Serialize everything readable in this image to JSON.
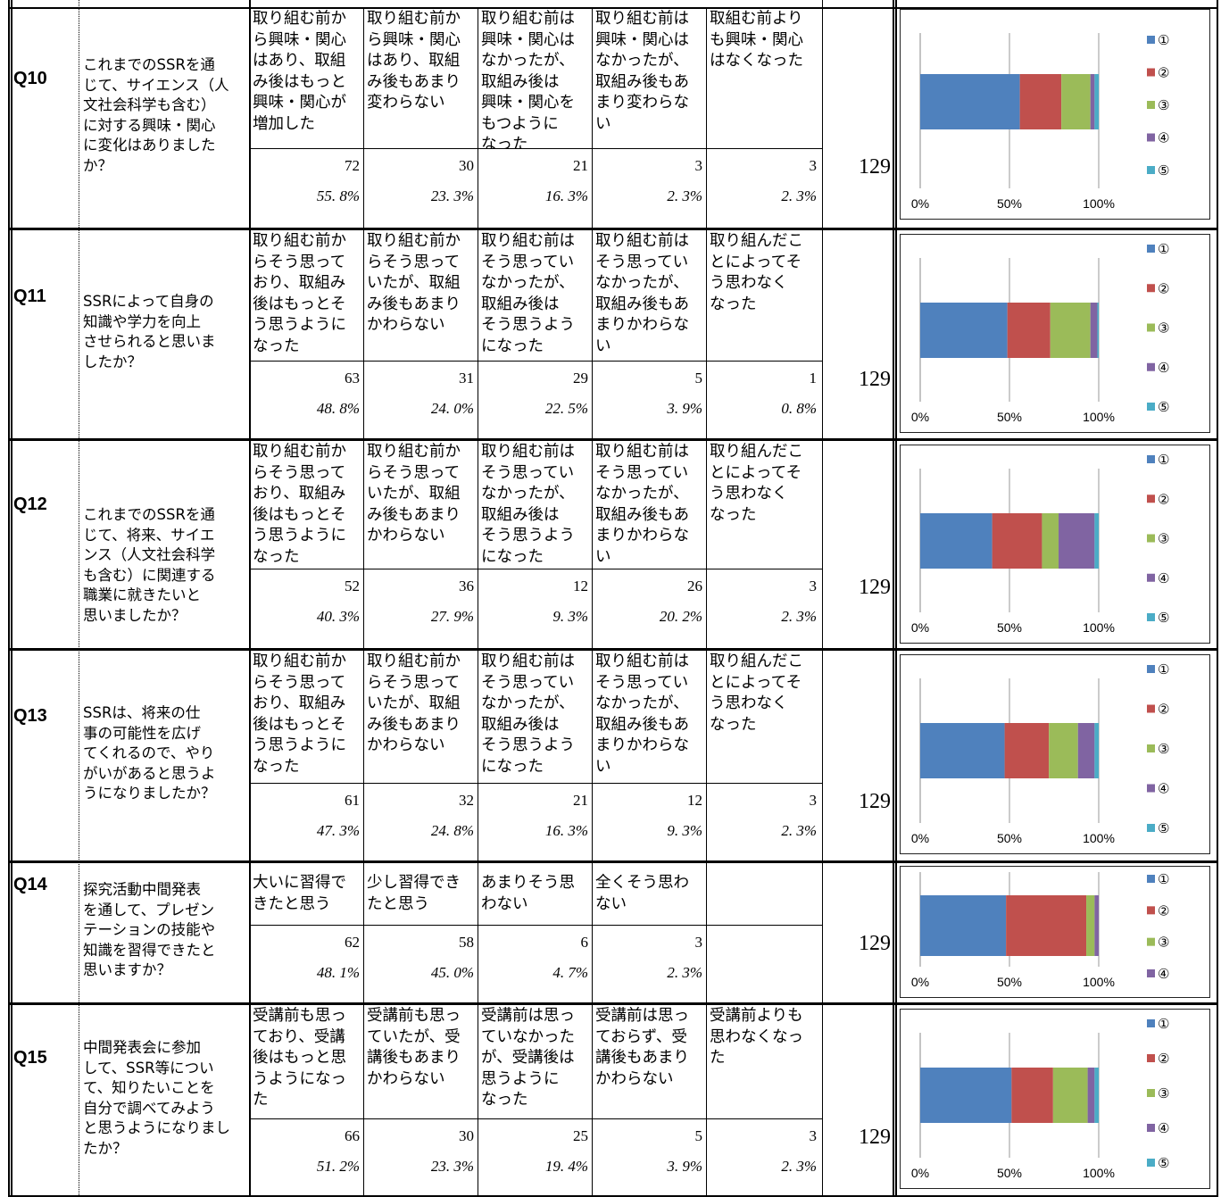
{
  "questions": [
    {
      "id": "Q10",
      "question": "これまでのSSRを通\nじて、サイエンス（人\n文社会科学も含む）\nに対する興味・関心\nに変化はありました\nか？",
      "options": [
        "取り組む前か\nら興味・関心\nはあり、取組\nみ後はもっと\n興味・関心が\n増加した",
        "取り組む前か\nら興味・関心\nはあり、取組\nみ後もあまり\n変わらない",
        "取り組む前は\n興味・関心は\nなかったが、\n取組み後は\n興味・関心を\nもつように\nなった",
        "取り組む前は\n興味・関心は\nなかったが、\n取組み後もあ\nまり変わらな\nい",
        "取組む前より\nも興味・関心\nはなくなった"
      ],
      "counts": [
        72,
        30,
        21,
        3,
        3
      ],
      "percents": [
        "55. 8%",
        "23. 3%",
        "16. 3%",
        "2. 3%",
        "2. 3%"
      ],
      "total": "129"
    },
    {
      "id": "Q11",
      "question": "SSRによって自身の\n知識や学力を向上\nさせられると思いま\nしたか？",
      "options": [
        "取り組む前か\nらそう思って\nおり、取組み\n後はもっとそ\nう思うように\nなった",
        "取り組む前か\nらそう思って\nいたが、取組\nみ後もあまり\nかわらない",
        "取り組む前は\nそう思ってい\nなかったが、\n取組み後は\nそう思うよう\nになった",
        "取り組む前は\nそう思ってい\nなかったが、\n取組み後もあ\nまりかわらな\nい",
        "取り組んだこ\nとによってそ\nう思わなく\nなった"
      ],
      "counts": [
        63,
        31,
        29,
        5,
        1
      ],
      "percents": [
        "48. 8%",
        "24. 0%",
        "22. 5%",
        "3. 9%",
        "0. 8%"
      ],
      "total": "129"
    },
    {
      "id": "Q12",
      "question": "これまでのSSRを通\nじて、将来、サイエ\nンス（人文社会科学\nも含む）に関連する\n職業に就きたいと\n思いましたか？",
      "options": [
        "取り組む前か\nらそう思って\nおり、取組み\n後はもっとそ\nう思うように\nなった",
        "取り組む前か\nらそう思って\nいたが、取組\nみ後もあまり\nかわらない",
        "取り組む前は\nそう思ってい\nなかったが、\n取組み後は\nそう思うよう\nになった",
        "取り組む前は\nそう思ってい\nなかったが、\n取組み後もあ\nまりかわらな\nい",
        "取り組んだこ\nとによってそ\nう思わなく\nなった"
      ],
      "counts": [
        52,
        36,
        12,
        26,
        3
      ],
      "percents": [
        "40. 3%",
        "27. 9%",
        "9. 3%",
        "20. 2%",
        "2. 3%"
      ],
      "total": "129"
    },
    {
      "id": "Q13",
      "question": "SSRは、将来の仕\n事の可能性を広げ\nてくれるので、やり\nがいがあると思うよ\nうになりましたか？",
      "options": [
        "取り組む前か\nらそう思って\nおり、取組み\n後はもっとそ\nう思うように\nなった",
        "取り組む前か\nらそう思って\nいたが、取組\nみ後もあまり\nかわらない",
        "取り組む前は\nそう思ってい\nなかったが、\n取組み後は\nそう思うよう\nになった",
        "取り組む前は\nそう思ってい\nなかったが、\n取組み後もあ\nまりかわらな\nい",
        "取り組んだこ\nとによってそ\nう思わなく\nなった"
      ],
      "counts": [
        61,
        32,
        21,
        12,
        3
      ],
      "percents": [
        "47. 3%",
        "24. 8%",
        "16. 3%",
        "9. 3%",
        "2. 3%"
      ],
      "total": "129"
    },
    {
      "id": "Q14",
      "question": "探究活動中間発表\nを通して、プレゼン\nテーションの技能や\n知識を習得できたと\n思いますか？",
      "options": [
        "大いに習得で\nきたと思う",
        "少し習得でき\nたと思う",
        "あまりそう思\nわない",
        "全くそう思わ\nない"
      ],
      "counts": [
        62,
        58,
        6,
        3
      ],
      "percents": [
        "48. 1%",
        "45. 0%",
        "4. 7%",
        "2. 3%"
      ],
      "total": "129"
    },
    {
      "id": "Q15",
      "question": "中間発表会に参加\nして、SSR等につい\nて、知りたいことを\n自分で調べてみよう\nと思うようになりまし\nたか？",
      "options": [
        "受講前も思っ\nており、受講\n後はもっと思\nうようになっ\nた",
        "受講前も思っ\nていたが、受\n講後もあまり\nかわらない",
        "受講前は思っ\nていなかった\nが、受講後は\n思うように\nなった",
        "受講前は思っ\nておらず、受\n講後もあまり\nかわらない",
        "受講前よりも\n思わなくなっ\nた"
      ],
      "counts": [
        66,
        30,
        25,
        5,
        3
      ],
      "percents": [
        "51. 2%",
        "23. 3%",
        "19. 4%",
        "3. 9%",
        "2. 3%"
      ],
      "total": "129"
    }
  ],
  "chart_data": [
    {
      "type": "bar",
      "orientation": "horizontal",
      "stacked": "percent",
      "question": "Q10",
      "series": [
        {
          "name": "①",
          "values": [
            72
          ]
        },
        {
          "name": "②",
          "values": [
            30
          ]
        },
        {
          "name": "③",
          "values": [
            21
          ]
        },
        {
          "name": "④",
          "values": [
            3
          ]
        },
        {
          "name": "⑤",
          "values": [
            3
          ]
        }
      ],
      "xticks": [
        "0%",
        "50%",
        "100%"
      ],
      "legend": "right"
    },
    {
      "type": "bar",
      "orientation": "horizontal",
      "stacked": "percent",
      "question": "Q11",
      "series": [
        {
          "name": "①",
          "values": [
            63
          ]
        },
        {
          "name": "②",
          "values": [
            31
          ]
        },
        {
          "name": "③",
          "values": [
            29
          ]
        },
        {
          "name": "④",
          "values": [
            5
          ]
        },
        {
          "name": "⑤",
          "values": [
            1
          ]
        }
      ],
      "xticks": [
        "0%",
        "50%",
        "100%"
      ],
      "legend": "right"
    },
    {
      "type": "bar",
      "orientation": "horizontal",
      "stacked": "percent",
      "question": "Q12",
      "series": [
        {
          "name": "①",
          "values": [
            52
          ]
        },
        {
          "name": "②",
          "values": [
            36
          ]
        },
        {
          "name": "③",
          "values": [
            12
          ]
        },
        {
          "name": "④",
          "values": [
            26
          ]
        },
        {
          "name": "⑤",
          "values": [
            3
          ]
        }
      ],
      "xticks": [
        "0%",
        "50%",
        "100%"
      ],
      "legend": "right"
    },
    {
      "type": "bar",
      "orientation": "horizontal",
      "stacked": "percent",
      "question": "Q13",
      "series": [
        {
          "name": "①",
          "values": [
            61
          ]
        },
        {
          "name": "②",
          "values": [
            32
          ]
        },
        {
          "name": "③",
          "values": [
            21
          ]
        },
        {
          "name": "④",
          "values": [
            12
          ]
        },
        {
          "name": "⑤",
          "values": [
            3
          ]
        }
      ],
      "xticks": [
        "0%",
        "50%",
        "100%"
      ],
      "legend": "right"
    },
    {
      "type": "bar",
      "orientation": "horizontal",
      "stacked": "percent",
      "question": "Q14",
      "series": [
        {
          "name": "①",
          "values": [
            62
          ]
        },
        {
          "name": "②",
          "values": [
            58
          ]
        },
        {
          "name": "③",
          "values": [
            6
          ]
        },
        {
          "name": "④",
          "values": [
            3
          ]
        }
      ],
      "xticks": [
        "0%",
        "50%",
        "100%"
      ],
      "legend": "right"
    },
    {
      "type": "bar",
      "orientation": "horizontal",
      "stacked": "percent",
      "question": "Q15",
      "series": [
        {
          "name": "①",
          "values": [
            66
          ]
        },
        {
          "name": "②",
          "values": [
            30
          ]
        },
        {
          "name": "③",
          "values": [
            25
          ]
        },
        {
          "name": "④",
          "values": [
            5
          ]
        },
        {
          "name": "⑤",
          "values": [
            3
          ]
        }
      ],
      "xticks": [
        "0%",
        "50%",
        "100%"
      ],
      "legend": "right"
    }
  ],
  "colors": [
    "#4F81BD",
    "#C0504D",
    "#9BBB59",
    "#8064A2",
    "#4BACC6"
  ]
}
